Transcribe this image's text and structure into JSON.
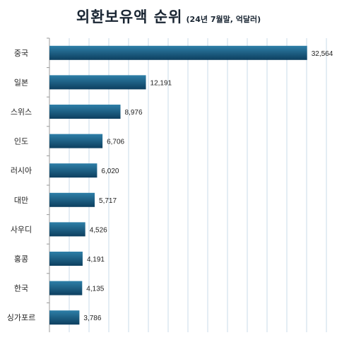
{
  "chart_data": {
    "type": "bar",
    "orientation": "horizontal",
    "title": "외환보유액 순위",
    "subtitle": "(24년 7월말, 억달러)",
    "categories": [
      "중국",
      "일본",
      "스위스",
      "인도",
      "러시아",
      "대만",
      "사우디",
      "홍콩",
      "한국",
      "싱가포르"
    ],
    "values": [
      32564,
      12191,
      8976,
      6706,
      6020,
      5717,
      4526,
      4191,
      4135,
      3786
    ],
    "value_labels": [
      "32,564",
      "12,191",
      "8,976",
      "6,706",
      "6,020",
      "5,717",
      "4,526",
      "4,191",
      "4,135",
      "3,786"
    ],
    "xlim": [
      0,
      35000
    ],
    "grid": true,
    "legend": "none",
    "colors": {
      "bar_top": "#2e7fa8",
      "bar_bottom": "#0d3f5f",
      "grid": "#c9dbe9",
      "axis": "#999999"
    }
  }
}
